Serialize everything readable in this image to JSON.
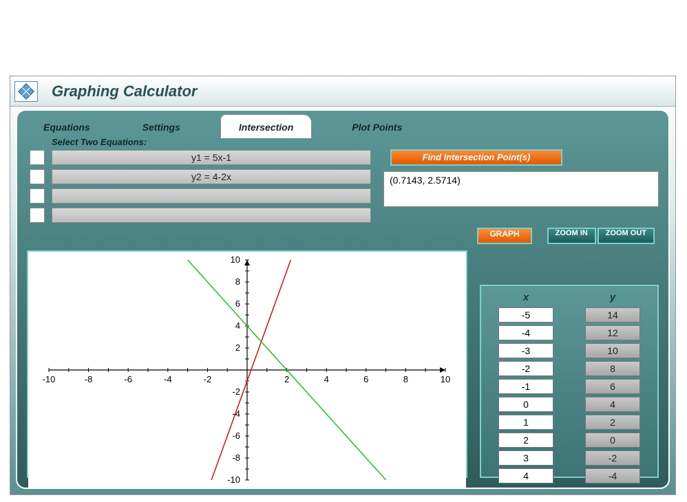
{
  "app": {
    "title": "Graphing Calculator"
  },
  "tabs": {
    "equations": "Equations",
    "settings": "Settings",
    "intersection": "Intersection",
    "plot_points": "Plot Points",
    "active": "intersection"
  },
  "equation_panel": {
    "label": "Select Two Equations:",
    "equations": [
      "y1 = 5x-1",
      "y2 = 4-2x",
      "",
      ""
    ]
  },
  "intersection": {
    "button": "Find Intersection Point(s)",
    "result": "(0.7143, 2.5714)"
  },
  "buttons": {
    "graph": "GRAPH",
    "zoom_in": "ZOOM IN",
    "zoom_out": "ZOOM OUT"
  },
  "data_table": {
    "x_label": "x",
    "y_label": "y",
    "x": [
      "-5",
      "-4",
      "-3",
      "-2",
      "-1",
      "0",
      "1",
      "2",
      "3",
      "4"
    ],
    "y": [
      "14",
      "12",
      "10",
      "8",
      "6",
      "4",
      "2",
      "0",
      "-2",
      "-4"
    ]
  },
  "chart": {
    "type": "line",
    "xlim": [
      -10,
      10
    ],
    "ylim": [
      -10,
      10
    ],
    "xtick_step": 2,
    "ytick_step": 2,
    "minor_tick_step": 1,
    "background_color": "#ffffff",
    "axis_color": "#000000",
    "tick_label_fontsize": 13,
    "series": [
      {
        "name": "y1",
        "equation": "5x-1",
        "color": "#d41010",
        "points": [
          [
            -1.8,
            -10
          ],
          [
            0.2,
            0
          ],
          [
            2.2,
            10
          ]
        ],
        "line_width": 1.5
      },
      {
        "name": "y2",
        "equation": "4-2x",
        "color": "#1ec41e",
        "points": [
          [
            -10,
            24
          ],
          [
            -3,
            10
          ],
          [
            0,
            4
          ],
          [
            2,
            0
          ],
          [
            7,
            -10
          ],
          [
            10,
            -16
          ]
        ],
        "line_width": 1.5
      }
    ]
  }
}
